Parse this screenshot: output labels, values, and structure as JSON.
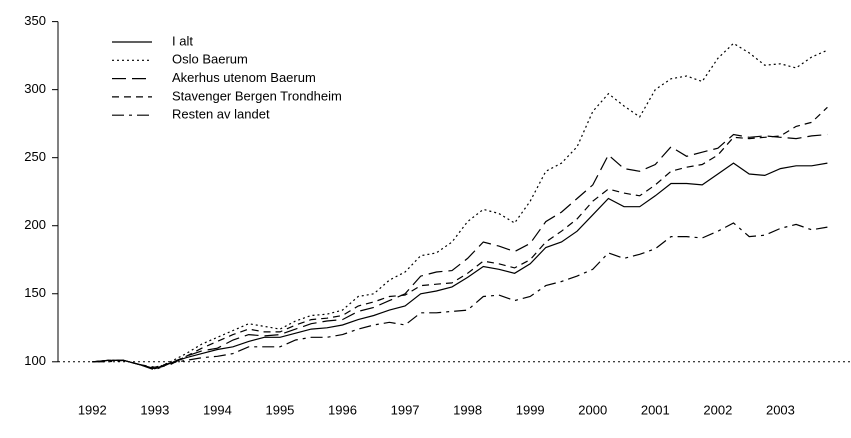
{
  "chart_data": {
    "type": "line",
    "x": [
      1992,
      1992.25,
      1992.5,
      1992.75,
      1993,
      1993.25,
      1993.5,
      1993.75,
      1994,
      1994.25,
      1994.5,
      1994.75,
      1995,
      1995.25,
      1995.5,
      1995.75,
      1996,
      1996.25,
      1996.5,
      1996.75,
      1997,
      1997.25,
      1997.5,
      1997.75,
      1998,
      1998.25,
      1998.5,
      1998.75,
      1999,
      1999.25,
      1999.5,
      1999.75,
      2000,
      2000.25,
      2000.5,
      2000.75,
      2001,
      2001.25,
      2001.5,
      2001.75,
      2002,
      2002.25,
      2002.5,
      2002.75,
      2003,
      2003.25,
      2003.5,
      2003.75
    ],
    "series": [
      {
        "name": "I alt",
        "color": "#000000",
        "dash": "solid",
        "values": [
          100,
          101,
          101,
          98,
          95,
          99,
          103,
          106,
          109,
          111,
          115,
          118,
          118,
          121,
          124,
          125,
          127,
          131,
          134,
          138,
          141,
          150,
          152,
          155,
          162,
          170,
          168,
          165,
          172,
          184,
          188,
          196,
          208,
          220,
          214,
          214,
          222,
          231,
          231,
          230,
          238,
          246,
          238,
          237,
          242,
          244,
          244,
          246
        ]
      },
      {
        "name": "Oslo Baerum",
        "color": "#000000",
        "dash": "dotted",
        "values": [
          100,
          101,
          101,
          98,
          95,
          100,
          106,
          113,
          118,
          123,
          128,
          126,
          124,
          130,
          134,
          135,
          138,
          148,
          150,
          160,
          166,
          178,
          180,
          188,
          203,
          212,
          209,
          202,
          218,
          240,
          246,
          258,
          284,
          297,
          288,
          280,
          300,
          308,
          310,
          306,
          323,
          334,
          327,
          318,
          319,
          316,
          324,
          329
        ]
      },
      {
        "name": "Akerhus utenom Baerum",
        "color": "#000000",
        "dash": "longdash",
        "values": [
          100,
          101,
          101,
          98,
          95,
          98,
          104,
          108,
          110,
          116,
          120,
          119,
          120,
          124,
          128,
          130,
          131,
          137,
          140,
          145,
          150,
          163,
          166,
          167,
          176,
          188,
          185,
          181,
          187,
          203,
          210,
          220,
          230,
          252,
          242,
          240,
          245,
          258,
          251,
          254,
          257,
          267,
          265,
          266,
          265,
          264,
          266,
          267
        ]
      },
      {
        "name": "Stavenger Bergen Trondheim",
        "color": "#000000",
        "dash": "dashed",
        "values": [
          100,
          101,
          101,
          98,
          96,
          99,
          104,
          110,
          115,
          120,
          124,
          122,
          122,
          127,
          131,
          132,
          134,
          141,
          144,
          148,
          149,
          156,
          157,
          158,
          165,
          174,
          172,
          169,
          175,
          188,
          196,
          205,
          218,
          227,
          224,
          222,
          230,
          240,
          243,
          245,
          252,
          265,
          264,
          265,
          266,
          273,
          276,
          287
        ]
      },
      {
        "name": "Resten av landet",
        "color": "#000000",
        "dash": "dotdash",
        "values": [
          100,
          100,
          101,
          98,
          94,
          99,
          101,
          103,
          104,
          106,
          111,
          111,
          111,
          116,
          118,
          118,
          120,
          124,
          127,
          129,
          127,
          136,
          136,
          137,
          138,
          148,
          149,
          145,
          148,
          156,
          159,
          163,
          168,
          180,
          176,
          179,
          183,
          192,
          192,
          191,
          196,
          202,
          192,
          193,
          198,
          201,
          197,
          199
        ]
      }
    ],
    "xlim": [
      1991.5,
      2004
    ],
    "xticks": [
      1992,
      1993,
      1994,
      1995,
      1996,
      1997,
      1998,
      1999,
      2000,
      2001,
      2002,
      2003
    ],
    "ylim": [
      80,
      360
    ],
    "yticks": [
      100,
      150,
      200,
      250,
      300,
      350
    ],
    "reference_line": 100,
    "legend": "top-left",
    "grid": false
  }
}
